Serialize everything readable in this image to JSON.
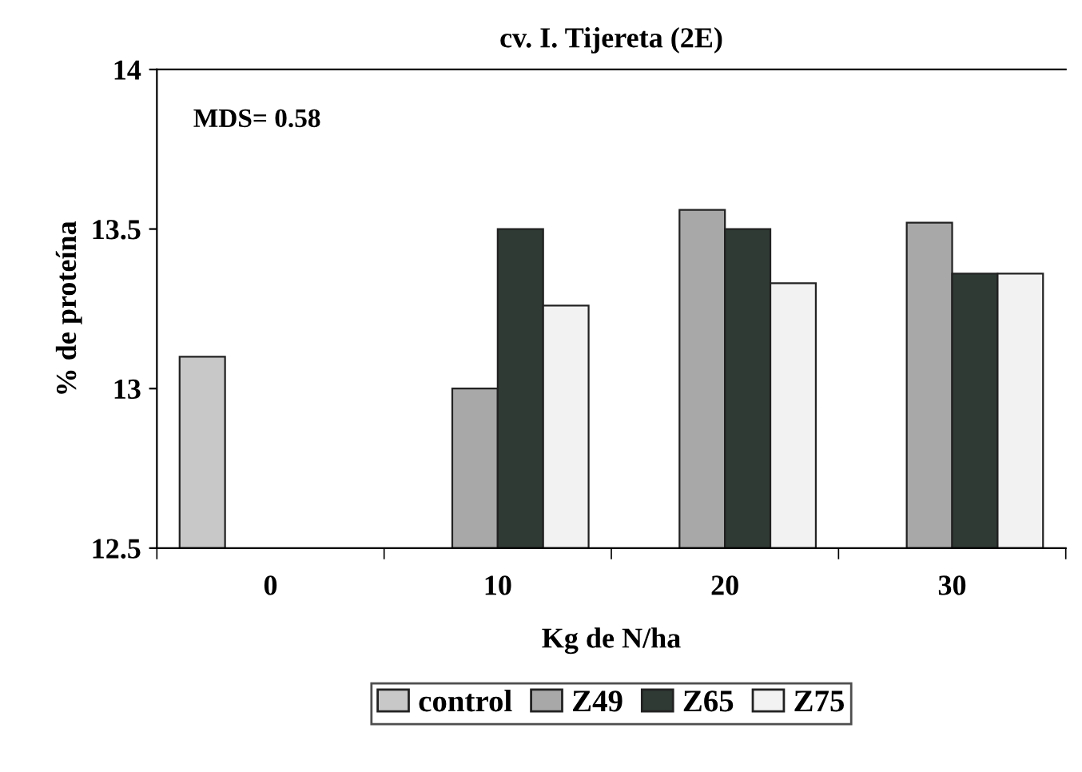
{
  "chart_data": {
    "type": "bar",
    "title": "cv. I. Tijereta (2E)",
    "xlabel": "Kg de N/ha",
    "ylabel": "% de proteína",
    "categories": [
      "0",
      "10",
      "20",
      "30"
    ],
    "series": [
      {
        "name": "control",
        "color": "#c8c8c8",
        "values": [
          13.1,
          null,
          null,
          null
        ]
      },
      {
        "name": "Z49",
        "color": "#a8a8a8",
        "values": [
          null,
          13.0,
          13.56,
          13.52
        ]
      },
      {
        "name": "Z65",
        "color": "#2f3a34",
        "values": [
          null,
          13.5,
          13.5,
          13.36
        ]
      },
      {
        "name": "Z75",
        "color": "#f2f2f2",
        "values": [
          null,
          13.26,
          13.33,
          13.36
        ]
      }
    ],
    "ylim": [
      12.5,
      14
    ],
    "yticks": [
      12.5,
      13,
      13.5,
      14
    ],
    "annotations": [
      "MDS= 0.58"
    ],
    "legend": "bottom",
    "grid": false
  }
}
